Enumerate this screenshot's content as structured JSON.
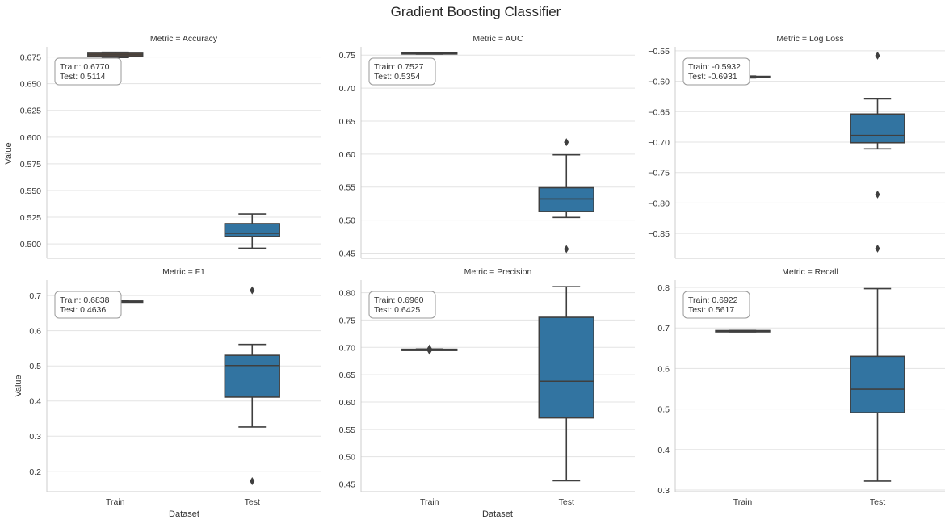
{
  "chart_data": {
    "type": "box",
    "title": "Gradient Boosting Classifier",
    "xlabel": "Dataset",
    "ylabel": "Value",
    "categories": [
      "Train",
      "Test"
    ],
    "colors": {
      "box_fill": "#3274a1",
      "box_fill_accuracy_train": "#7a5233",
      "box_edge": "#3f3f3f",
      "grid": "#e3e3e3",
      "axis": "#cccccc",
      "text": "#333333",
      "title": "#262626"
    },
    "panels": [
      {
        "metric": "Accuracy",
        "panel_title": "Metric = Accuracy",
        "ylim": [
          0.4865,
          0.6845
        ],
        "yticks": [
          0.5,
          0.525,
          0.55,
          0.575,
          0.6,
          0.625,
          0.65,
          0.675
        ],
        "ytick_labels": [
          "0.500",
          "0.525",
          "0.550",
          "0.575",
          "0.600",
          "0.625",
          "0.650",
          "0.675"
        ],
        "annotation": {
          "train_label": "Train:  0.6770",
          "test_label": "Test:   0.5114"
        },
        "boxes": [
          {
            "category": "Train",
            "whisker_low": 0.6745,
            "q1": 0.6755,
            "median": 0.677,
            "q3": 0.6785,
            "whisker_high": 0.6795,
            "outliers": []
          },
          {
            "category": "Test",
            "whisker_low": 0.496,
            "q1": 0.507,
            "median": 0.51,
            "q3": 0.519,
            "whisker_high": 0.528,
            "outliers": []
          }
        ],
        "show_xticks": false
      },
      {
        "metric": "AUC",
        "panel_title": "Metric = AUC",
        "ylim": [
          0.442,
          0.7625
        ],
        "yticks": [
          0.45,
          0.5,
          0.55,
          0.6,
          0.65,
          0.7,
          0.75
        ],
        "ytick_labels": [
          "0.45",
          "0.50",
          "0.55",
          "0.60",
          "0.65",
          "0.70",
          "0.75"
        ],
        "annotation": {
          "train_label": "Train:  0.7527",
          "test_label": "Test:   0.5354"
        },
        "boxes": [
          {
            "category": "Train",
            "whisker_low": 0.7515,
            "q1": 0.752,
            "median": 0.7527,
            "q3": 0.7535,
            "whisker_high": 0.754,
            "outliers": []
          },
          {
            "category": "Test",
            "whisker_low": 0.504,
            "q1": 0.513,
            "median": 0.532,
            "q3": 0.549,
            "whisker_high": 0.599,
            "outliers": [
              0.618,
              0.456
            ]
          }
        ],
        "show_xticks": false
      },
      {
        "metric": "Log Loss",
        "panel_title": "Metric = Log Loss",
        "ylim": [
          -0.891,
          -0.5435
        ],
        "yticks": [
          -0.85,
          -0.8,
          -0.75,
          -0.7,
          -0.65,
          -0.6,
          -0.55
        ],
        "ytick_labels": [
          "−0.85",
          "−0.80",
          "−0.75",
          "−0.70",
          "−0.65",
          "−0.60",
          "−0.55"
        ],
        "annotation": {
          "train_label": "Train: -0.5932",
          "test_label": "Test:  -0.6931"
        },
        "boxes": [
          {
            "category": "Train",
            "whisker_low": -0.5945,
            "q1": -0.594,
            "median": -0.5932,
            "q3": -0.592,
            "whisker_high": -0.5915,
            "outliers": []
          },
          {
            "category": "Test",
            "whisker_low": -0.711,
            "q1": -0.701,
            "median": -0.689,
            "q3": -0.654,
            "whisker_high": -0.629,
            "outliers": [
              -0.558,
              -0.786,
              -0.875
            ]
          }
        ],
        "show_xticks": false
      },
      {
        "metric": "F1",
        "panel_title": "Metric = F1",
        "ylim": [
          0.142,
          0.744
        ],
        "yticks": [
          0.2,
          0.3,
          0.4,
          0.5,
          0.6,
          0.7
        ],
        "ytick_labels": [
          "0.2",
          "0.3",
          "0.4",
          "0.5",
          "0.6",
          "0.7"
        ],
        "annotation": {
          "train_label": "Train:  0.6838",
          "test_label": "Test:   0.4636"
        },
        "boxes": [
          {
            "category": "Train",
            "whisker_low": 0.6825,
            "q1": 0.683,
            "median": 0.6838,
            "q3": 0.6845,
            "whisker_high": 0.6855,
            "outliers": []
          },
          {
            "category": "Test",
            "whisker_low": 0.326,
            "q1": 0.411,
            "median": 0.501,
            "q3": 0.53,
            "whisker_high": 0.561,
            "outliers": [
              0.715,
              0.172
            ]
          }
        ],
        "show_xticks": true
      },
      {
        "metric": "Precision",
        "panel_title": "Metric = Precision",
        "ylim": [
          0.436,
          0.823
        ],
        "yticks": [
          0.45,
          0.5,
          0.55,
          0.6,
          0.65,
          0.7,
          0.75,
          0.8
        ],
        "ytick_labels": [
          "0.45",
          "0.50",
          "0.55",
          "0.60",
          "0.65",
          "0.70",
          "0.75",
          "0.80"
        ],
        "annotation": {
          "train_label": "Train:  0.6960",
          "test_label": "Test:   0.6425"
        },
        "boxes": [
          {
            "category": "Train",
            "whisker_low": 0.695,
            "q1": 0.6955,
            "median": 0.696,
            "q3": 0.6965,
            "whisker_high": 0.697,
            "outliers": [
              0.698,
              0.694
            ]
          },
          {
            "category": "Test",
            "whisker_low": 0.456,
            "q1": 0.571,
            "median": 0.638,
            "q3": 0.755,
            "whisker_high": 0.811,
            "outliers": []
          }
        ],
        "show_xticks": true
      },
      {
        "metric": "Recall",
        "panel_title": "Metric = Recall",
        "ylim": [
          0.296,
          0.818
        ],
        "yticks": [
          0.3,
          0.4,
          0.5,
          0.6,
          0.7,
          0.8
        ],
        "ytick_labels": [
          "0.3",
          "0.4",
          "0.5",
          "0.6",
          "0.7",
          "0.8"
        ],
        "annotation": {
          "train_label": "Train:  0.6922",
          "test_label": "Test:   0.5617"
        },
        "boxes": [
          {
            "category": "Train",
            "whisker_low": 0.6905,
            "q1": 0.691,
            "median": 0.6922,
            "q3": 0.6935,
            "whisker_high": 0.694,
            "outliers": []
          },
          {
            "category": "Test",
            "whisker_low": 0.322,
            "q1": 0.491,
            "median": 0.549,
            "q3": 0.63,
            "whisker_high": 0.797,
            "outliers": []
          }
        ],
        "show_xticks": true
      }
    ]
  }
}
